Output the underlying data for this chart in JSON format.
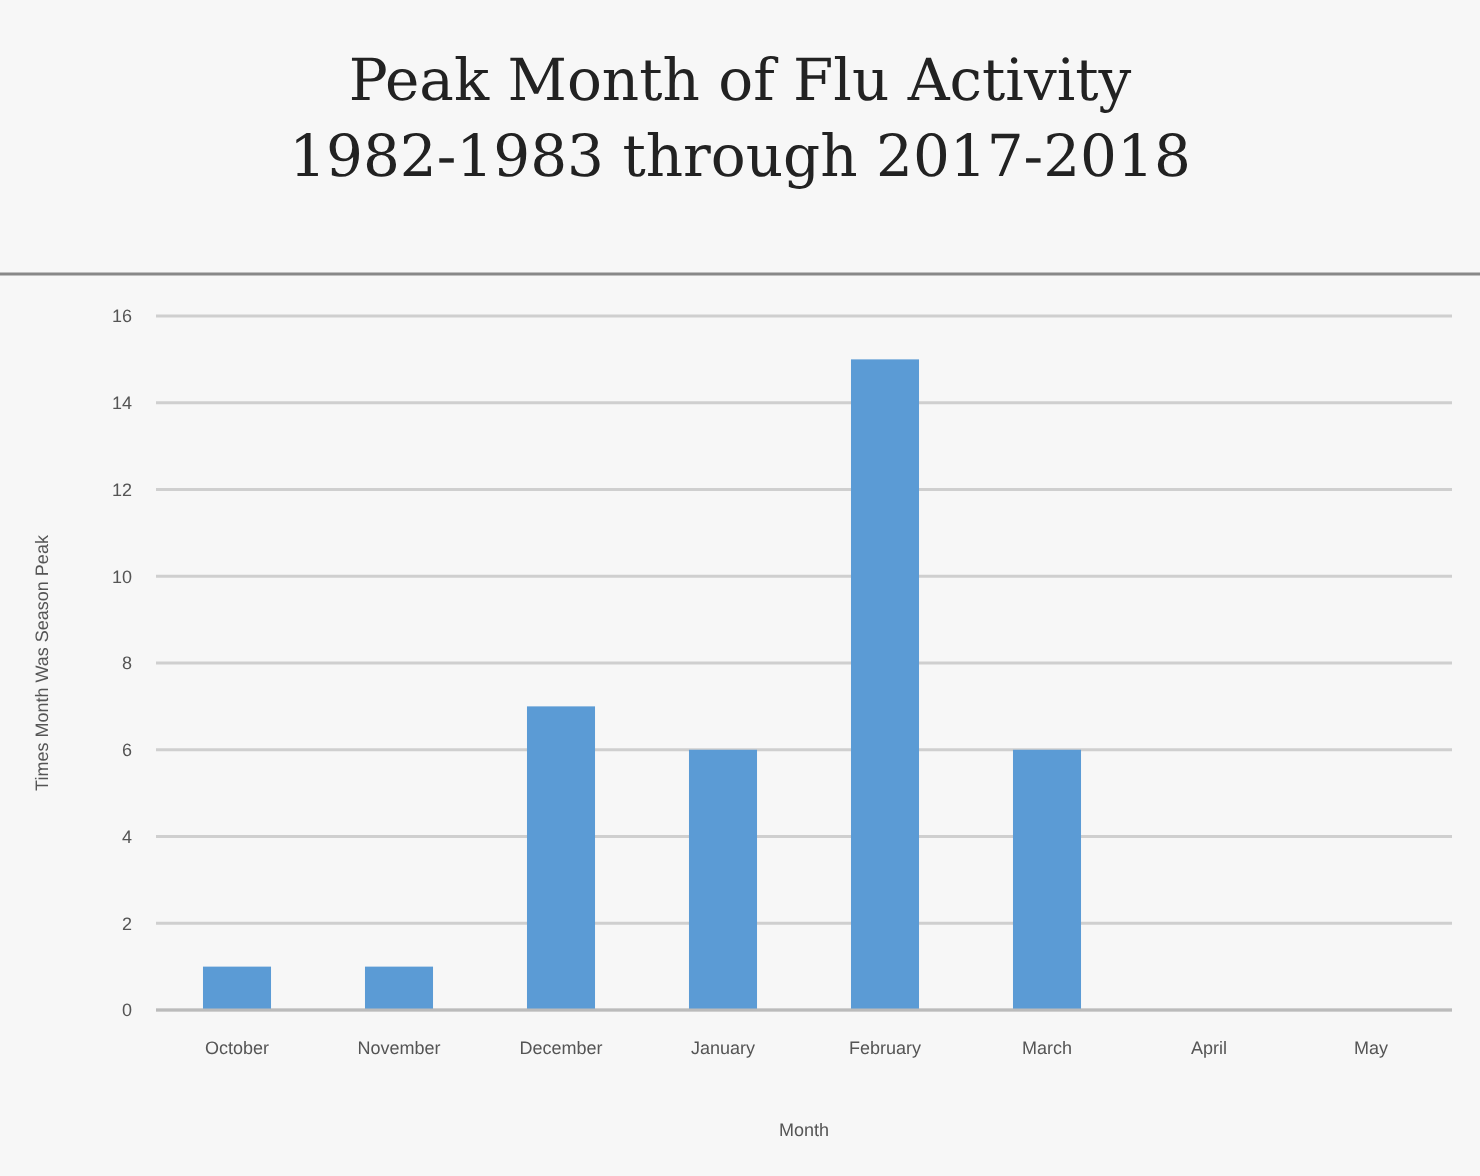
{
  "chart_data": {
    "type": "bar",
    "title": "Peak Month of Flu Activity\n1982-1983 through 2017-2018",
    "xlabel": "Month",
    "ylabel": "Times Month Was Season Peak",
    "categories": [
      "October",
      "November",
      "December",
      "January",
      "February",
      "March",
      "April",
      "May"
    ],
    "values": [
      1,
      1,
      7,
      6,
      15,
      6,
      0,
      0
    ],
    "color": "#5b9bd5",
    "ylim": [
      0,
      16
    ],
    "yticks": [
      0,
      2,
      4,
      6,
      8,
      10,
      12,
      14,
      16
    ],
    "grid": "y"
  }
}
